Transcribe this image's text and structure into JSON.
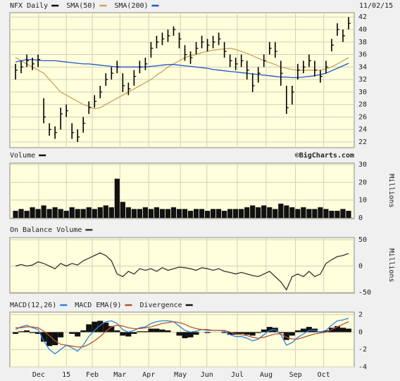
{
  "chart_data": [
    {
      "type": "ohlc",
      "title": "NFX Daily",
      "date": "11/02/15",
      "color": "#000000",
      "high": [
        34.5,
        35,
        36,
        35.5,
        36,
        29,
        25,
        24.5,
        27.5,
        28,
        25,
        24,
        26,
        28.5,
        29.5,
        31,
        33,
        34,
        35,
        33,
        31.5,
        33.5,
        35,
        35.5,
        38,
        39,
        39.5,
        40,
        40.5,
        39.5,
        37.5,
        36.5,
        38,
        39,
        38.5,
        39,
        39.5,
        38,
        36,
        35.5,
        36,
        35,
        33,
        34,
        36,
        38,
        38,
        35,
        31,
        31,
        34.5,
        35,
        36,
        35,
        33.5,
        35,
        38.5,
        41,
        40,
        42
      ],
      "low": [
        32,
        33,
        34,
        33.5,
        34,
        25,
        23,
        22.5,
        24,
        26,
        22.5,
        22,
        23.5,
        26.5,
        27.5,
        29,
        31,
        32,
        33,
        30,
        29.5,
        31,
        33,
        33.5,
        35.5,
        37,
        37.5,
        38,
        39,
        37,
        35,
        34.5,
        36,
        37,
        36.5,
        37,
        37.5,
        35.5,
        34,
        33.5,
        34,
        32,
        30,
        31.5,
        34,
        36,
        35.5,
        31,
        26.5,
        28,
        32,
        33,
        34,
        32.5,
        31.5,
        33,
        36.5,
        39,
        38,
        40
      ],
      "close": [
        33.5,
        34,
        35,
        34.5,
        35.2,
        26,
        24,
        23.5,
        26.5,
        27,
        23.5,
        22.8,
        25,
        27.5,
        28.5,
        30,
        32,
        33,
        34,
        31,
        30.5,
        32.5,
        34,
        34.5,
        37,
        38,
        38.5,
        39,
        40,
        38.5,
        36,
        35.5,
        37,
        38,
        37.5,
        38,
        38.5,
        36.5,
        35,
        34.5,
        35,
        33.5,
        31,
        33,
        35,
        37,
        36.5,
        33,
        27.5,
        30,
        33.5,
        34,
        35,
        33.5,
        32.5,
        34,
        37.5,
        40,
        39,
        41
      ],
      "series": [
        {
          "name": "SMA(50)",
          "color": "#c9a35a",
          "values": [
            35.5,
            35.0,
            34.5,
            34.0,
            33.5,
            33.0,
            32.0,
            31.0,
            30.0,
            29.5,
            29.0,
            28.5,
            28.0,
            27.7,
            27.3,
            27.5,
            28.0,
            28.5,
            29.0,
            29.5,
            30.0,
            30.5,
            31.0,
            31.5,
            32.0,
            32.7,
            33.3,
            34.0,
            34.5,
            35.0,
            35.5,
            35.8,
            36.0,
            36.3,
            36.5,
            36.7,
            36.8,
            36.9,
            37.0,
            36.8,
            36.5,
            36.2,
            35.8,
            35.4,
            35.0,
            34.7,
            34.4,
            34.0,
            33.8,
            33.6,
            33.5,
            33.5,
            33.5,
            33.5,
            33.5,
            33.7,
            34.0,
            34.5,
            35.0,
            35.5
          ]
        },
        {
          "name": "SMA(200)",
          "color": "#2255cc",
          "values": [
            34.8,
            35.0,
            35.2,
            35.2,
            35.1,
            35.0,
            35.0,
            35.0,
            34.9,
            34.8,
            34.7,
            34.6,
            34.5,
            34.5,
            34.4,
            34.3,
            34.2,
            34.1,
            34.0,
            34.0,
            34.0,
            34.0,
            34.0,
            34.0,
            34.1,
            34.2,
            34.3,
            34.4,
            34.4,
            34.3,
            34.2,
            34.1,
            34.0,
            33.9,
            33.8,
            33.6,
            33.5,
            33.4,
            33.3,
            33.2,
            33.1,
            33.0,
            32.9,
            32.8,
            32.7,
            32.6,
            32.5,
            32.4,
            32.4,
            32.3,
            32.3,
            32.4,
            32.5,
            32.6,
            32.8,
            33.0,
            33.4,
            33.8,
            34.2,
            34.6
          ]
        }
      ],
      "ylim": [
        21.1,
        42.7
      ],
      "yticks": [
        22,
        24,
        26,
        28,
        30,
        32,
        34,
        36,
        38,
        40,
        42
      ],
      "grid": true
    },
    {
      "type": "bar",
      "title": "Volume",
      "annotation": "©BigCharts.com",
      "ylabel": "Millions",
      "color": "#111111",
      "values": [
        4,
        5,
        4,
        6,
        5,
        7,
        5,
        6,
        5,
        4,
        6,
        5,
        5,
        6,
        5,
        6,
        7,
        6,
        22,
        9,
        6,
        5,
        5,
        6,
        5,
        6,
        5,
        5,
        6,
        5,
        5,
        4,
        5,
        5,
        4,
        5,
        5,
        4,
        5,
        5,
        5,
        6,
        7,
        6,
        7,
        6,
        5,
        8,
        7,
        6,
        5,
        6,
        5,
        5,
        6,
        5,
        4,
        4,
        5,
        4
      ],
      "ylim": [
        -0.4,
        30.8
      ],
      "yticks": [
        0,
        10,
        20,
        30
      ],
      "grid": true
    },
    {
      "type": "line",
      "title": "On Balance Volume",
      "ylabel": "Millions",
      "color": "#333333",
      "values": [
        0,
        3,
        0,
        2,
        8,
        5,
        0,
        -5,
        5,
        0,
        5,
        2,
        10,
        15,
        20,
        25,
        20,
        10,
        -15,
        -20,
        -10,
        -15,
        -5,
        -8,
        -5,
        -10,
        -3,
        -8,
        -5,
        -2,
        -3,
        -5,
        -8,
        -3,
        -5,
        -8,
        -5,
        -10,
        -12,
        -15,
        -12,
        -15,
        -18,
        -20,
        -15,
        -10,
        -20,
        -30,
        -45,
        -20,
        -15,
        -20,
        -10,
        -20,
        -15,
        5,
        12,
        18,
        20,
        24
      ],
      "ylim": [
        -51.3,
        54
      ],
      "yticks": [
        -50,
        0,
        50
      ],
      "grid": true
    },
    {
      "type": "macd",
      "grid": true,
      "series": [
        {
          "name": "MACD(12,26)",
          "color": "#2f7fe0",
          "values": [
            0.3,
            0.6,
            0.8,
            0.5,
            0.3,
            -1.0,
            -2.0,
            -2.5,
            -2.0,
            -1.5,
            -1.8,
            -2.2,
            -1.5,
            -0.5,
            0.2,
            0.8,
            1.2,
            1.3,
            1.0,
            0.3,
            0.0,
            0.2,
            0.5,
            0.6,
            1.0,
            1.2,
            1.3,
            1.3,
            1.2,
            0.7,
            0.2,
            0.0,
            0.1,
            0.3,
            0.2,
            0.2,
            0.2,
            0.1,
            -0.3,
            -0.5,
            -0.5,
            -0.7,
            -1.0,
            -0.8,
            -0.3,
            0.2,
            0.3,
            -0.3,
            -1.5,
            -1.2,
            -0.6,
            -0.2,
            0.2,
            0.2,
            0.0,
            0.2,
            0.8,
            1.3,
            1.4,
            1.6
          ]
        },
        {
          "name": "MACD EMA(9)",
          "color": "#b0553a",
          "values": [
            0.5,
            0.5,
            0.6,
            0.6,
            0.5,
            0.1,
            -0.4,
            -1.0,
            -1.4,
            -1.5,
            -1.6,
            -1.7,
            -1.7,
            -1.4,
            -1.0,
            -0.5,
            0.1,
            0.6,
            0.8,
            0.7,
            0.5,
            0.4,
            0.4,
            0.5,
            0.6,
            0.8,
            1.0,
            1.1,
            1.2,
            1.1,
            0.9,
            0.6,
            0.4,
            0.3,
            0.3,
            0.2,
            0.2,
            0.2,
            0.0,
            -0.2,
            -0.3,
            -0.4,
            -0.6,
            -0.7,
            -0.6,
            -0.4,
            -0.2,
            -0.2,
            -0.6,
            -0.8,
            -0.8,
            -0.6,
            -0.4,
            -0.2,
            -0.1,
            0.0,
            0.3,
            0.6,
            0.9,
            1.2
          ]
        },
        {
          "name": "Divergence",
          "color": "#111111",
          "type": "bar",
          "values": [
            -0.2,
            0.1,
            0.2,
            -0.1,
            -0.2,
            -1.1,
            -1.6,
            -1.5,
            -0.6,
            0.0,
            -0.2,
            -0.5,
            0.2,
            0.9,
            1.2,
            1.3,
            1.1,
            0.7,
            0.2,
            -0.4,
            -0.5,
            -0.2,
            0.1,
            0.1,
            0.4,
            0.4,
            0.3,
            0.2,
            0.0,
            -0.4,
            -0.7,
            -0.6,
            -0.3,
            0.0,
            -0.1,
            0.0,
            0.0,
            -0.1,
            -0.3,
            -0.3,
            -0.2,
            -0.3,
            -0.4,
            -0.1,
            0.3,
            0.6,
            0.5,
            -0.1,
            -0.9,
            -0.4,
            0.2,
            0.4,
            0.6,
            0.4,
            0.1,
            0.2,
            0.5,
            0.7,
            0.5,
            0.4
          ]
        }
      ],
      "ylim": [
        -4,
        2.3
      ],
      "yticks": [
        -4,
        -2,
        0,
        2
      ],
      "xlim": [
        -1,
        60
      ],
      "xticks": [
        {
          "value": 4.1,
          "label": "Dec"
        },
        {
          "value": 9.0,
          "label": "15"
        },
        {
          "value": 13.6,
          "label": "Feb"
        },
        {
          "value": 18.5,
          "label": "Mar"
        },
        {
          "value": 23.6,
          "label": "Apr"
        },
        {
          "value": 29.2,
          "label": "May"
        },
        {
          "value": 33.9,
          "label": "Jun"
        },
        {
          "value": 39.3,
          "label": "Jul"
        },
        {
          "value": 44.4,
          "label": "Aug"
        },
        {
          "value": 49.6,
          "label": "Sep"
        },
        {
          "value": 54.6,
          "label": "Oct"
        }
      ]
    }
  ]
}
